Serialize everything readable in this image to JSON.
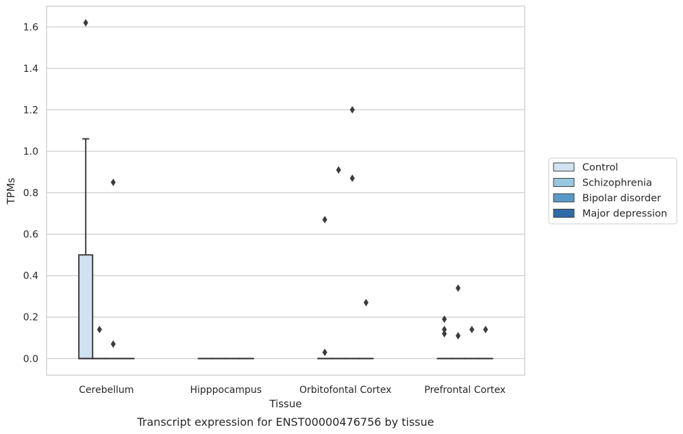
{
  "chart_data": {
    "type": "box",
    "title": "",
    "caption": "Transcript expression for ENST00000476756 by tissue",
    "xlabel": "Tissue",
    "ylabel": "TPMs",
    "ylim": [
      -0.08,
      1.7
    ],
    "yticks": [
      0.0,
      0.2,
      0.4,
      0.6,
      0.8,
      1.0,
      1.2,
      1.4,
      1.6
    ],
    "ytick_labels": [
      "0.0",
      "0.2",
      "0.4",
      "0.6",
      "0.8",
      "1.0",
      "1.2",
      "1.4",
      "1.6"
    ],
    "grid": true,
    "legend_position": "right",
    "categories": [
      "Cerebellum",
      "Hipppocampus",
      "Orbitofontal Cortex",
      "Prefrontal Cortex"
    ],
    "series": [
      {
        "name": "Control",
        "color": "#d1e2f2",
        "boxes": [
          {
            "category": "Cerebellum",
            "whisker_low": 0.0,
            "q1": 0.0,
            "median": 0.0,
            "q3": 0.5,
            "whisker_high": 1.06,
            "outliers": [
              1.62
            ]
          },
          {
            "category": "Hipppocampus",
            "whisker_low": 0.0,
            "q1": 0.0,
            "median": 0.0,
            "q3": 0.0,
            "whisker_high": 0.0,
            "outliers": []
          },
          {
            "category": "Orbitofontal Cortex",
            "whisker_low": 0.0,
            "q1": 0.0,
            "median": 0.0,
            "q3": 0.0,
            "whisker_high": 0.0,
            "outliers": [
              0.67,
              0.03
            ]
          },
          {
            "category": "Prefrontal Cortex",
            "whisker_low": 0.0,
            "q1": 0.0,
            "median": 0.0,
            "q3": 0.0,
            "whisker_high": 0.0,
            "outliers": [
              0.19,
              0.14,
              0.12
            ]
          }
        ]
      },
      {
        "name": "Schizophrenia",
        "color": "#9ac7e0",
        "boxes": [
          {
            "category": "Cerebellum",
            "whisker_low": 0.0,
            "q1": 0.0,
            "median": 0.0,
            "q3": 0.0,
            "whisker_high": 0.0,
            "outliers": [
              0.14
            ]
          },
          {
            "category": "Hipppocampus",
            "whisker_low": 0.0,
            "q1": 0.0,
            "median": 0.0,
            "q3": 0.0,
            "whisker_high": 0.0,
            "outliers": []
          },
          {
            "category": "Orbitofontal Cortex",
            "whisker_low": 0.0,
            "q1": 0.0,
            "median": 0.0,
            "q3": 0.0,
            "whisker_high": 0.0,
            "outliers": [
              0.91
            ]
          },
          {
            "category": "Prefrontal Cortex",
            "whisker_low": 0.0,
            "q1": 0.0,
            "median": 0.0,
            "q3": 0.0,
            "whisker_high": 0.0,
            "outliers": [
              0.34,
              0.11
            ]
          }
        ]
      },
      {
        "name": "Bipolar disorder",
        "color": "#5a9ac7",
        "boxes": [
          {
            "category": "Cerebellum",
            "whisker_low": 0.0,
            "q1": 0.0,
            "median": 0.0,
            "q3": 0.0,
            "whisker_high": 0.0,
            "outliers": [
              0.85,
              0.07
            ]
          },
          {
            "category": "Hipppocampus",
            "whisker_low": 0.0,
            "q1": 0.0,
            "median": 0.0,
            "q3": 0.0,
            "whisker_high": 0.0,
            "outliers": []
          },
          {
            "category": "Orbitofontal Cortex",
            "whisker_low": 0.0,
            "q1": 0.0,
            "median": 0.0,
            "q3": 0.0,
            "whisker_high": 0.0,
            "outliers": [
              1.2,
              0.87
            ]
          },
          {
            "category": "Prefrontal Cortex",
            "whisker_low": 0.0,
            "q1": 0.0,
            "median": 0.0,
            "q3": 0.0,
            "whisker_high": 0.0,
            "outliers": [
              0.14
            ]
          }
        ]
      },
      {
        "name": "Major depression",
        "color": "#2e6ca8",
        "boxes": [
          {
            "category": "Cerebellum",
            "whisker_low": 0.0,
            "q1": 0.0,
            "median": 0.0,
            "q3": 0.0,
            "whisker_high": 0.0,
            "outliers": []
          },
          {
            "category": "Hipppocampus",
            "whisker_low": 0.0,
            "q1": 0.0,
            "median": 0.0,
            "q3": 0.0,
            "whisker_high": 0.0,
            "outliers": []
          },
          {
            "category": "Orbitofontal Cortex",
            "whisker_low": 0.0,
            "q1": 0.0,
            "median": 0.0,
            "q3": 0.0,
            "whisker_high": 0.0,
            "outliers": [
              0.27
            ]
          },
          {
            "category": "Prefrontal Cortex",
            "whisker_low": 0.0,
            "q1": 0.0,
            "median": 0.0,
            "q3": 0.0,
            "whisker_high": 0.0,
            "outliers": [
              0.14
            ]
          }
        ]
      }
    ]
  }
}
